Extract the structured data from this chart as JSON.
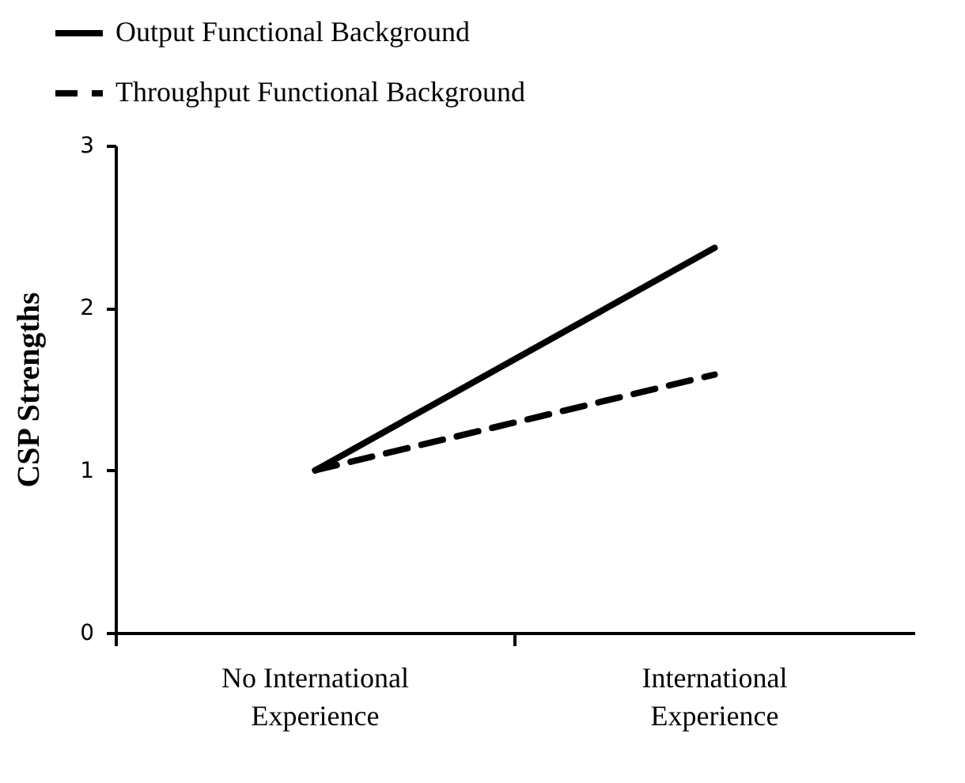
{
  "chart_data": {
    "type": "line",
    "ylabel": "CSP Strengths",
    "categories": [
      "No International Experience",
      "International Experience"
    ],
    "series": [
      {
        "name": "Output Functional Background",
        "color": "#000000",
        "line_style": "solid",
        "values": [
          1.0,
          2.37
        ]
      },
      {
        "name": "Throughput Functional Background",
        "color": "#000000",
        "line_style": "dashed",
        "values": [
          1.0,
          1.59
        ]
      }
    ],
    "ylim": [
      0,
      3
    ],
    "yticks": [
      0,
      1,
      2,
      3
    ],
    "grid": false,
    "legend": "top left",
    "marker": "none"
  }
}
